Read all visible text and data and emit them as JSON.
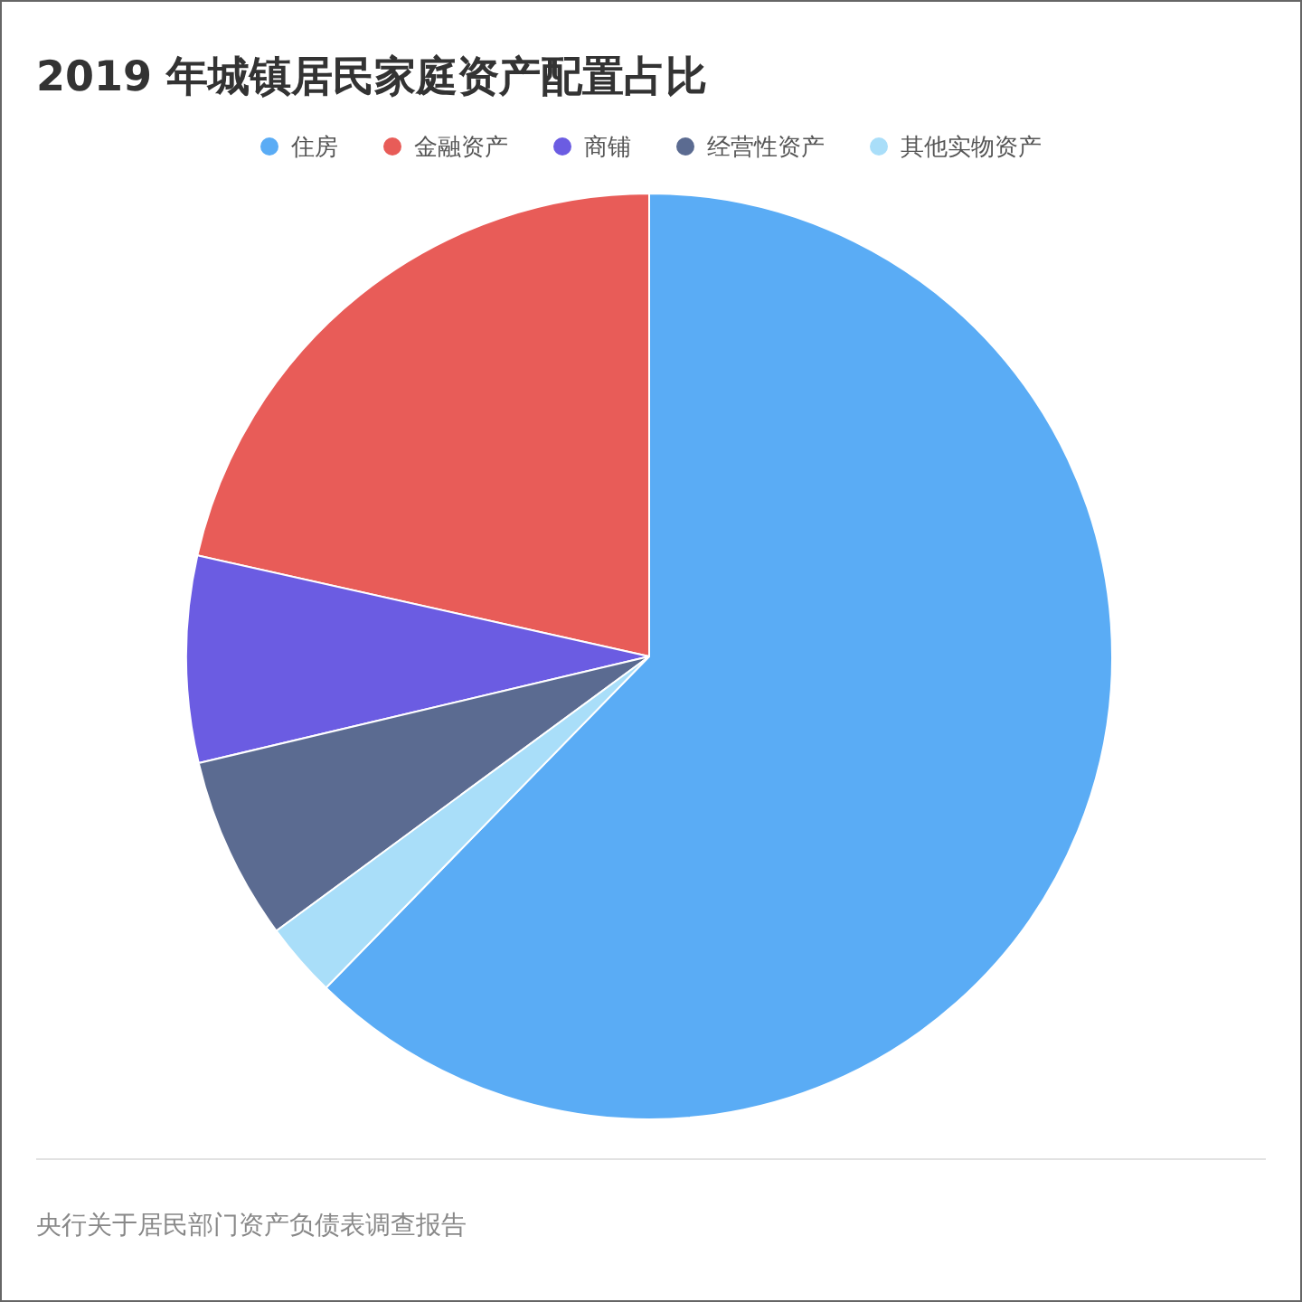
{
  "chart_data": {
    "type": "pie",
    "title": "2019 年城镇居民家庭资产配置占比",
    "categories": [
      "住房",
      "金融资产",
      "商铺",
      "经营性资产",
      "其他实物资产"
    ],
    "values": [
      62.3,
      21.5,
      7.2,
      6.4,
      2.6
    ],
    "colors": [
      "#5aacf5",
      "#e85c58",
      "#6b5ce2",
      "#5b6b91",
      "#a9def9"
    ],
    "legend": "top",
    "annotations": [
      "央行关于居民部门资产负债表调查报告"
    ]
  }
}
